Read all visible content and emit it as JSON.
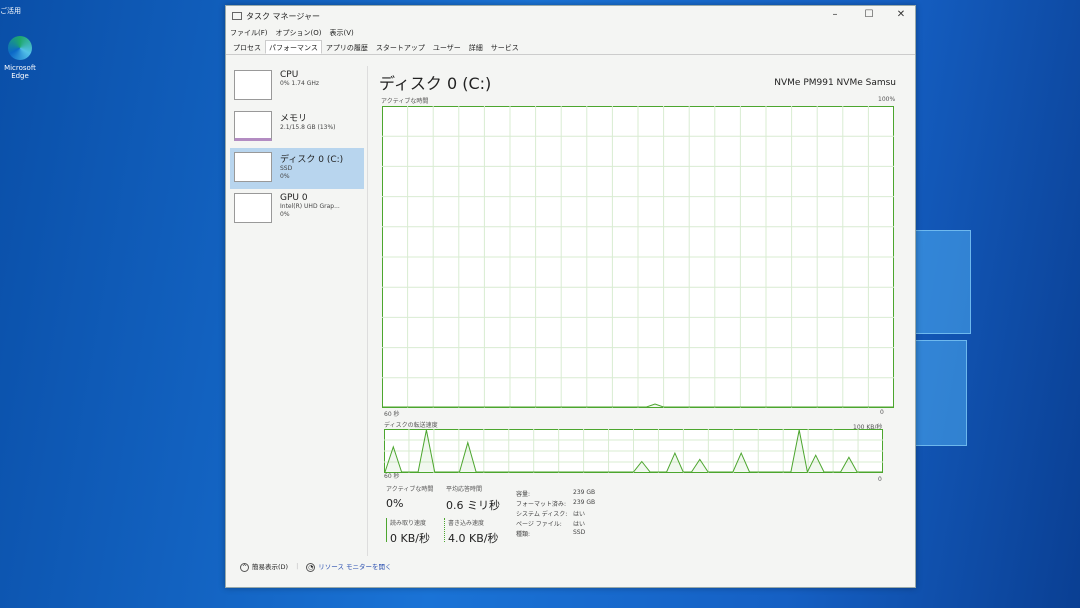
{
  "desktop": {
    "top_label": "ご活用",
    "edge_label": "Microsoft Edge"
  },
  "window": {
    "title": "タスク マネージャー",
    "minimize": "–",
    "maximize": "☐",
    "close": "✕"
  },
  "menu": [
    "ファイル(F)",
    "オプション(O)",
    "表示(V)"
  ],
  "tabs": [
    {
      "label": "プロセス"
    },
    {
      "label": "パフォーマンス",
      "active": true
    },
    {
      "label": "アプリの履歴"
    },
    {
      "label": "スタートアップ"
    },
    {
      "label": "ユーザー"
    },
    {
      "label": "詳細"
    },
    {
      "label": "サービス"
    }
  ],
  "sidebar": [
    {
      "name": "CPU",
      "sub1": "0% 1.74 GHz",
      "sub2": ""
    },
    {
      "name": "メモリ",
      "sub1": "2.1/15.8 GB (13%)",
      "sub2": ""
    },
    {
      "name": "ディスク 0 (C:)",
      "sub1": "SSD",
      "sub2": "0%",
      "active": true
    },
    {
      "name": "GPU 0",
      "sub1": "Intel(R) UHD Grap...",
      "sub2": "0%"
    }
  ],
  "main": {
    "title": "ディスク 0 (C:)",
    "device": "NVMe PM991 NVMe Samsu",
    "active_label": "アクティブな時間",
    "active_max": "100%",
    "time_left": "60 秒",
    "zero": "0",
    "transfer_label": "ディスクの転送速度",
    "transfer_max": "100 KB/秒"
  },
  "chart_data": [
    {
      "type": "line",
      "title": "アクティブな時間",
      "xlabel": "60 秒",
      "ylim": [
        0,
        100
      ],
      "x_range": [
        60,
        0
      ],
      "color": "#4ca62e",
      "values": [
        0,
        0,
        0,
        0,
        0,
        0,
        0,
        0,
        0,
        0,
        0,
        0,
        0,
        0,
        0,
        0,
        0,
        0,
        0,
        0,
        0,
        0,
        0,
        0,
        0,
        0,
        0,
        0,
        0,
        0,
        0,
        0,
        1,
        0,
        0,
        0,
        0,
        0,
        0,
        0,
        0,
        0,
        0,
        0,
        0,
        0,
        0,
        0,
        0,
        0,
        0,
        0,
        0,
        0,
        0,
        0,
        0,
        0,
        0,
        0,
        0
      ]
    },
    {
      "type": "line",
      "title": "ディスクの転送速度",
      "xlabel": "60 秒",
      "ylim": [
        0,
        100
      ],
      "unit": "KB/秒",
      "color": "#4ca62e",
      "values": [
        0,
        60,
        0,
        0,
        0,
        100,
        0,
        0,
        0,
        0,
        70,
        0,
        0,
        0,
        0,
        0,
        0,
        0,
        0,
        0,
        0,
        0,
        0,
        0,
        0,
        0,
        0,
        0,
        0,
        0,
        0,
        25,
        0,
        0,
        0,
        45,
        0,
        0,
        30,
        0,
        0,
        0,
        0,
        45,
        0,
        0,
        0,
        0,
        0,
        0,
        100,
        0,
        40,
        0,
        0,
        0,
        35,
        0,
        0,
        0,
        0
      ]
    }
  ],
  "stats": {
    "active_time_label": "アクティブな時間",
    "active_time": "0%",
    "avg_response_label": "平均応答時間",
    "avg_response": "0.6 ミリ秒",
    "read_label": "読み取り速度",
    "read": "0 KB/秒",
    "write_label": "書き込み速度",
    "write": "4.0 KB/秒",
    "info": [
      {
        "k": "容量:",
        "v": "239 GB"
      },
      {
        "k": "フォーマット済み:",
        "v": "239 GB"
      },
      {
        "k": "システム ディスク:",
        "v": "はい"
      },
      {
        "k": "ページ ファイル:",
        "v": "はい"
      },
      {
        "k": "種類:",
        "v": "SSD"
      }
    ]
  },
  "footer": {
    "fewer": "簡易表示(D)",
    "resmon": "リソース モニターを開く"
  }
}
